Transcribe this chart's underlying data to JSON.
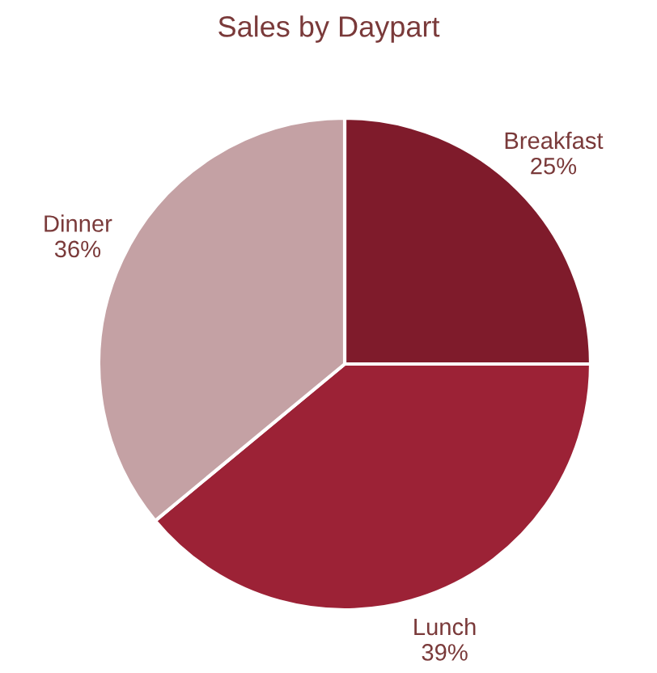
{
  "chart_data": {
    "type": "pie",
    "title": "Sales by Daypart",
    "categories": [
      "Breakfast",
      "Lunch",
      "Dinner"
    ],
    "values": [
      25,
      39,
      36
    ],
    "value_labels": [
      "25%",
      "39%",
      "36%"
    ],
    "colors": [
      "#7f1b2b",
      "#9c2236",
      "#c4a1a4"
    ]
  }
}
